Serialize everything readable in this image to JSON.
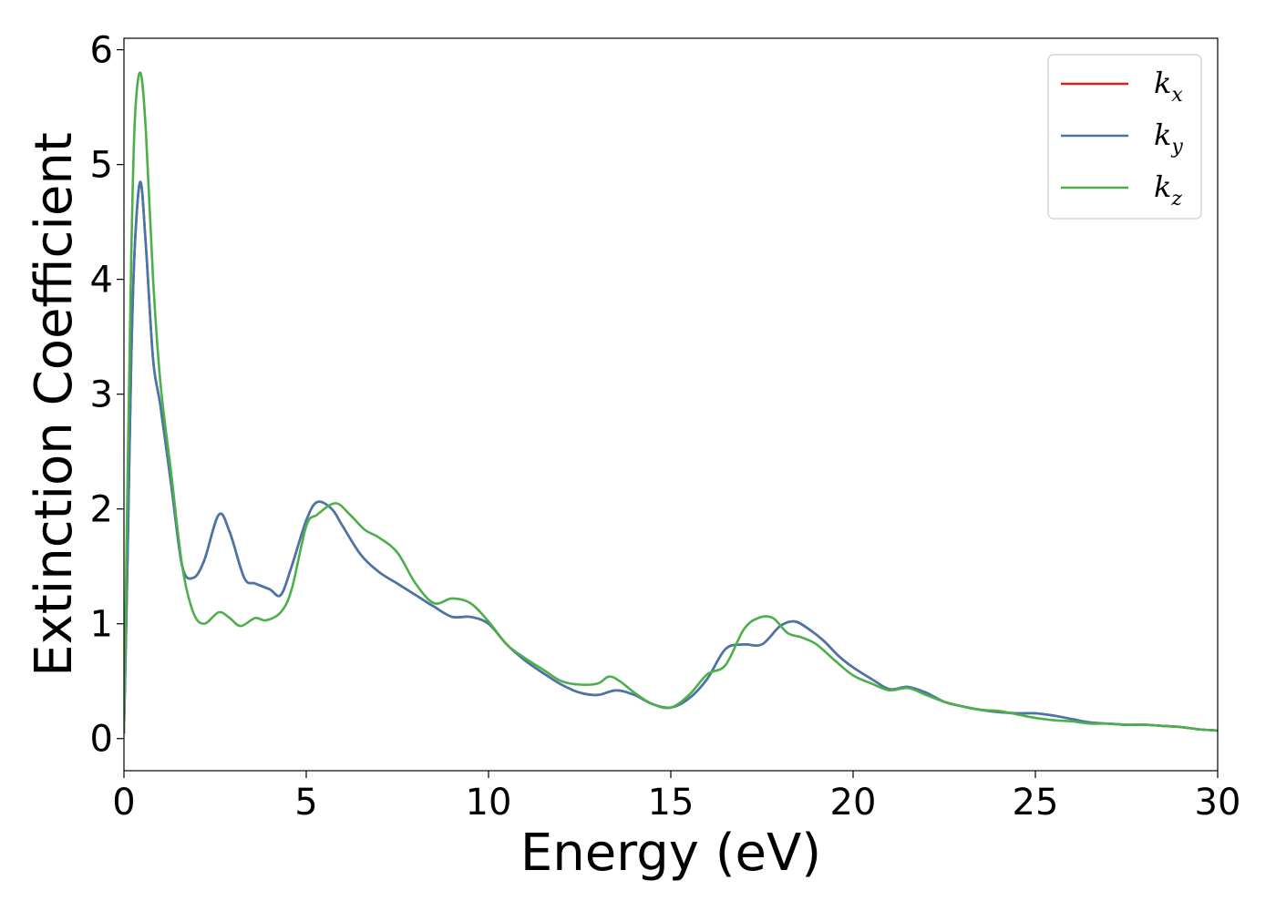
{
  "chart_data": {
    "type": "line",
    "title": "",
    "xlabel": "Energy (eV)",
    "ylabel": "Extinction Coefficient",
    "xlim": [
      0,
      30
    ],
    "ylim": [
      -0.28,
      6.1
    ],
    "xticks": [
      0,
      5,
      10,
      15,
      20,
      25,
      30
    ],
    "yticks": [
      0,
      1,
      2,
      3,
      4,
      5,
      6
    ],
    "grid": false,
    "legend_position": "top-right",
    "series": [
      {
        "name": "k_x",
        "label_base": "k",
        "label_sub": "x",
        "color": "#e41a1c",
        "x": [
          0,
          0.1,
          0.2,
          0.3,
          0.45,
          0.6,
          0.8,
          1.0,
          1.3,
          1.6,
          1.9,
          2.2,
          2.6,
          2.9,
          3.3,
          3.6,
          4.0,
          4.3,
          4.6,
          5.0,
          5.3,
          5.7,
          6.0,
          6.5,
          7.0,
          7.5,
          8.0,
          8.5,
          9.0,
          9.5,
          10.0,
          10.5,
          11.0,
          11.5,
          12.0,
          12.5,
          13.0,
          13.5,
          14.0,
          14.5,
          15.0,
          15.5,
          16.0,
          16.5,
          17.0,
          17.5,
          18.0,
          18.4,
          18.8,
          19.2,
          19.6,
          20.0,
          20.5,
          21.0,
          21.5,
          22.0,
          22.5,
          23.0,
          23.5,
          24.0,
          24.5,
          25.0,
          25.5,
          26.0,
          26.5,
          27.0,
          27.5,
          28.0,
          28.5,
          29.0,
          29.5,
          30.0
        ],
        "y": [
          0.05,
          1.6,
          3.3,
          4.3,
          4.85,
          4.3,
          3.3,
          2.9,
          2.2,
          1.5,
          1.4,
          1.55,
          1.95,
          1.8,
          1.4,
          1.35,
          1.3,
          1.25,
          1.5,
          1.9,
          2.06,
          2.0,
          1.85,
          1.6,
          1.45,
          1.35,
          1.25,
          1.15,
          1.06,
          1.06,
          1.0,
          0.82,
          0.68,
          0.57,
          0.47,
          0.4,
          0.38,
          0.42,
          0.38,
          0.3,
          0.27,
          0.35,
          0.52,
          0.78,
          0.82,
          0.82,
          0.98,
          1.02,
          0.95,
          0.85,
          0.72,
          0.62,
          0.52,
          0.43,
          0.45,
          0.4,
          0.32,
          0.28,
          0.25,
          0.23,
          0.22,
          0.22,
          0.2,
          0.17,
          0.14,
          0.13,
          0.12,
          0.12,
          0.11,
          0.1,
          0.08,
          0.07
        ]
      },
      {
        "name": "k_y",
        "label_base": "k",
        "label_sub": "y",
        "color": "#4477aa",
        "x": [
          0,
          0.1,
          0.2,
          0.3,
          0.45,
          0.6,
          0.8,
          1.0,
          1.3,
          1.6,
          1.9,
          2.2,
          2.6,
          2.9,
          3.3,
          3.6,
          4.0,
          4.3,
          4.6,
          5.0,
          5.3,
          5.7,
          6.0,
          6.5,
          7.0,
          7.5,
          8.0,
          8.5,
          9.0,
          9.5,
          10.0,
          10.5,
          11.0,
          11.5,
          12.0,
          12.5,
          13.0,
          13.5,
          14.0,
          14.5,
          15.0,
          15.5,
          16.0,
          16.5,
          17.0,
          17.5,
          18.0,
          18.4,
          18.8,
          19.2,
          19.6,
          20.0,
          20.5,
          21.0,
          21.5,
          22.0,
          22.5,
          23.0,
          23.5,
          24.0,
          24.5,
          25.0,
          25.5,
          26.0,
          26.5,
          27.0,
          27.5,
          28.0,
          28.5,
          29.0,
          29.5,
          30.0
        ],
        "y": [
          0.05,
          1.6,
          3.3,
          4.3,
          4.85,
          4.3,
          3.3,
          2.9,
          2.2,
          1.5,
          1.4,
          1.55,
          1.95,
          1.8,
          1.4,
          1.35,
          1.3,
          1.25,
          1.5,
          1.9,
          2.06,
          2.0,
          1.85,
          1.6,
          1.45,
          1.35,
          1.25,
          1.15,
          1.06,
          1.06,
          1.0,
          0.82,
          0.68,
          0.57,
          0.47,
          0.4,
          0.38,
          0.42,
          0.38,
          0.3,
          0.27,
          0.35,
          0.52,
          0.78,
          0.82,
          0.82,
          0.98,
          1.02,
          0.95,
          0.85,
          0.72,
          0.62,
          0.52,
          0.43,
          0.45,
          0.4,
          0.32,
          0.28,
          0.25,
          0.23,
          0.22,
          0.22,
          0.2,
          0.17,
          0.14,
          0.13,
          0.12,
          0.12,
          0.11,
          0.1,
          0.08,
          0.07
        ]
      },
      {
        "name": "k_z",
        "label_base": "k",
        "label_sub": "z",
        "color": "#4daf4a",
        "x": [
          0,
          0.1,
          0.2,
          0.3,
          0.45,
          0.6,
          0.8,
          1.0,
          1.3,
          1.6,
          1.9,
          2.2,
          2.6,
          2.9,
          3.2,
          3.6,
          3.9,
          4.3,
          4.6,
          5.0,
          5.3,
          5.8,
          6.2,
          6.6,
          7.0,
          7.5,
          8.0,
          8.5,
          9.0,
          9.5,
          10.0,
          10.5,
          11.0,
          11.5,
          12.0,
          12.5,
          13.0,
          13.3,
          13.6,
          14.0,
          14.5,
          15.0,
          15.5,
          16.0,
          16.5,
          17.0,
          17.4,
          17.8,
          18.2,
          18.6,
          19.0,
          19.5,
          20.0,
          20.5,
          21.0,
          21.5,
          22.0,
          22.5,
          23.0,
          23.5,
          24.0,
          24.5,
          25.0,
          25.5,
          26.0,
          26.5,
          27.0,
          27.5,
          28.0,
          28.5,
          29.0,
          29.5,
          30.0
        ],
        "y": [
          0.05,
          2.3,
          4.2,
          5.4,
          5.8,
          5.3,
          4.0,
          3.1,
          2.3,
          1.5,
          1.1,
          1.0,
          1.1,
          1.05,
          0.98,
          1.05,
          1.03,
          1.1,
          1.3,
          1.85,
          1.95,
          2.05,
          1.95,
          1.82,
          1.75,
          1.62,
          1.35,
          1.18,
          1.22,
          1.18,
          1.02,
          0.82,
          0.7,
          0.6,
          0.5,
          0.47,
          0.48,
          0.54,
          0.5,
          0.4,
          0.3,
          0.27,
          0.38,
          0.56,
          0.64,
          0.95,
          1.05,
          1.05,
          0.92,
          0.88,
          0.82,
          0.68,
          0.55,
          0.48,
          0.42,
          0.44,
          0.38,
          0.32,
          0.28,
          0.25,
          0.24,
          0.21,
          0.18,
          0.16,
          0.15,
          0.13,
          0.13,
          0.12,
          0.12,
          0.11,
          0.1,
          0.08,
          0.07
        ]
      }
    ]
  }
}
